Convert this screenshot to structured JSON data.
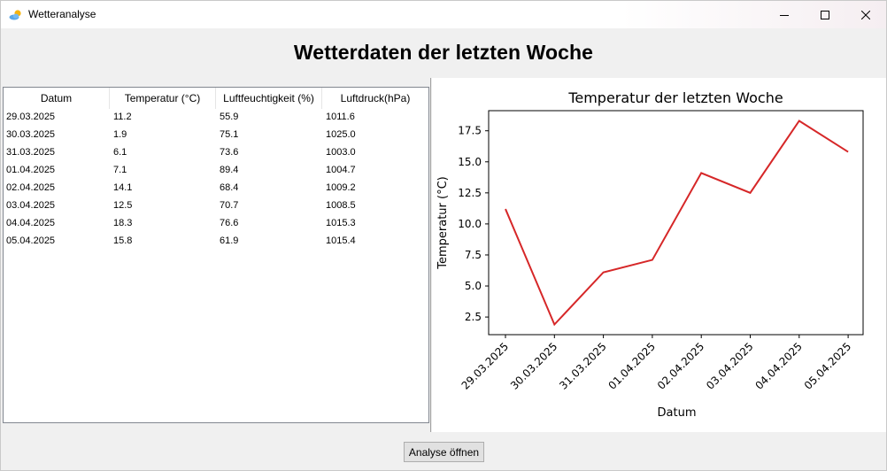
{
  "window": {
    "title": "Wetteranalyse",
    "icon": "weather-icon",
    "controls": [
      "minimize-icon",
      "maximize-icon",
      "close-icon"
    ]
  },
  "header": {
    "title": "Wetterdaten der letzten Woche"
  },
  "table": {
    "columns": [
      "Datum",
      "Temperatur (°C)",
      "Luftfeuchtigkeit (%)",
      "Luftdruck(hPa)"
    ],
    "rows": [
      [
        "29.03.2025",
        "11.2",
        "55.9",
        "1011.6"
      ],
      [
        "30.03.2025",
        "1.9",
        "75.1",
        "1025.0"
      ],
      [
        "31.03.2025",
        "6.1",
        "73.6",
        "1003.0"
      ],
      [
        "01.04.2025",
        "7.1",
        "89.4",
        "1004.7"
      ],
      [
        "02.04.2025",
        "14.1",
        "68.4",
        "1009.2"
      ],
      [
        "03.04.2025",
        "12.5",
        "70.7",
        "1008.5"
      ],
      [
        "04.04.2025",
        "18.3",
        "76.6",
        "1015.3"
      ],
      [
        "05.04.2025",
        "15.8",
        "61.9",
        "1015.4"
      ]
    ]
  },
  "chart_data": {
    "type": "line",
    "title": "Temperatur der letzten Woche",
    "xlabel": "Datum",
    "ylabel": "Temperatur (°C)",
    "categories": [
      "29.03.2025",
      "30.03.2025",
      "31.03.2025",
      "01.04.2025",
      "02.04.2025",
      "03.04.2025",
      "04.04.2025",
      "05.04.2025"
    ],
    "series": [
      {
        "values": [
          11.2,
          1.9,
          6.1,
          7.1,
          14.1,
          12.5,
          18.3,
          15.8
        ],
        "color": "#d62728"
      }
    ],
    "ylim": [
      1.08,
      19.12
    ],
    "yticks": [
      "2.5",
      "5.0",
      "7.5",
      "10.0",
      "12.5",
      "15.0",
      "17.5"
    ],
    "grid": false,
    "legend": "none"
  },
  "footer": {
    "button_label": "Analyse öffnen"
  }
}
